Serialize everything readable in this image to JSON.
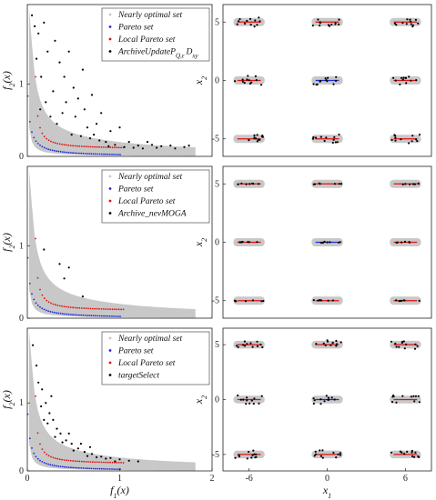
{
  "figure": {
    "rows": 3,
    "cols": 2
  },
  "colors": {
    "nearly_optimal": "#c8c8c8",
    "pareto": "#1f2ad6",
    "local_pareto": "#e01010",
    "archive": "#000000"
  },
  "chart_data": [
    {
      "type": "scatter",
      "panel": "objective-space-row1",
      "xlabel": "",
      "ylabel_main": "f",
      "ylabel_sub": "2",
      "ylabel_tail": "(x)",
      "xlim": [
        0,
        2
      ],
      "ylim": [
        0,
        2.1
      ],
      "xticks": [],
      "yticks": [
        "0",
        "1"
      ],
      "ytick_values": [
        0,
        1
      ],
      "legend": {
        "placement": "top-right",
        "entries": [
          {
            "label": "Nearly optimal set",
            "color": "#c8c8c8"
          },
          {
            "label": "Pareto set",
            "color": "#1f2ad6"
          },
          {
            "label": "Local Pareto set",
            "color": "#e01010"
          },
          {
            "label": "ArchiveUpdateP",
            "sub": "Q,ε",
            "tail": "D",
            "tail_sub": "xy",
            "color": "#000000"
          }
        ]
      },
      "series": [
        {
          "name": "Nearly optimal set",
          "note": "band"
        },
        {
          "name": "Pareto set",
          "note": "pareto front f2 ≈ 0.02/(f1+0.02)"
        },
        {
          "name": "Local Pareto set",
          "note": "local front f2 ≈ 0.1 + 0.02/(f1-0.07)"
        },
        {
          "name": "ArchiveUpdateP Q,ε D xy",
          "points": [
            [
              0.05,
              1.95
            ],
            [
              0.08,
              1.8
            ],
            [
              0.12,
              1.7
            ],
            [
              0.18,
              1.85
            ],
            [
              0.22,
              1.45
            ],
            [
              0.3,
              1.6
            ],
            [
              0.35,
              1.3
            ],
            [
              0.4,
              1.1
            ],
            [
              0.45,
              1.45
            ],
            [
              0.5,
              0.95
            ],
            [
              0.55,
              0.8
            ],
            [
              0.6,
              1.2
            ],
            [
              0.62,
              0.65
            ],
            [
              0.7,
              0.85
            ],
            [
              0.75,
              0.45
            ],
            [
              0.8,
              0.6
            ],
            [
              0.9,
              0.35
            ],
            [
              1.0,
              0.4
            ],
            [
              1.1,
              0.2
            ],
            [
              1.2,
              0.15
            ],
            [
              1.3,
              0.2
            ],
            [
              1.4,
              0.12
            ],
            [
              1.55,
              0.15
            ],
            [
              1.7,
              0.13
            ],
            [
              0.25,
              0.55
            ],
            [
              0.28,
              0.9
            ],
            [
              0.2,
              0.75
            ],
            [
              0.15,
              1.1
            ],
            [
              0.32,
              0.45
            ],
            [
              0.48,
              0.3
            ],
            [
              0.58,
              0.28
            ],
            [
              0.68,
              0.25
            ],
            [
              0.85,
              0.2
            ],
            [
              0.95,
              0.16
            ],
            [
              1.05,
              0.13
            ],
            [
              1.25,
              0.11
            ],
            [
              1.45,
              0.14
            ],
            [
              0.38,
              0.6
            ],
            [
              0.42,
              0.75
            ],
            [
              0.52,
              0.55
            ],
            [
              0.72,
              0.3
            ],
            [
              0.1,
              1.35
            ],
            [
              0.14,
              0.65
            ],
            [
              0.65,
              0.4
            ],
            [
              0.78,
              0.22
            ],
            [
              0.88,
              0.14
            ],
            [
              1.15,
              0.12
            ],
            [
              1.35,
              0.16
            ],
            [
              1.6,
              0.11
            ],
            [
              1.75,
              0.15
            ]
          ]
        }
      ]
    },
    {
      "type": "scatter",
      "panel": "decision-space-row1",
      "xlabel": "",
      "ylabel_main": "x",
      "ylabel_sub": "2",
      "ylabel_tail": "",
      "xlim": [
        -8,
        8
      ],
      "ylim": [
        -6.5,
        6.5
      ],
      "xticks": [],
      "yticks": [
        "-5",
        "0",
        "5"
      ],
      "ytick_values": [
        -5,
        0,
        5
      ],
      "series": [
        {
          "name": "ArchiveUpdateP Q,ε D xy",
          "note": "clusters at (±6,0,±5) grid"
        }
      ]
    },
    {
      "type": "scatter",
      "panel": "objective-space-row2",
      "xlabel": "",
      "ylabel_main": "f",
      "ylabel_sub": "2",
      "ylabel_tail": "(x)",
      "xlim": [
        0,
        2
      ],
      "ylim": [
        0,
        2.1
      ],
      "xticks": [],
      "yticks": [
        "0",
        "1"
      ],
      "ytick_values": [
        0,
        1
      ],
      "legend": {
        "placement": "top-right",
        "entries": [
          {
            "label": "Nearly optimal set",
            "color": "#c8c8c8"
          },
          {
            "label": "Pareto set",
            "color": "#1f2ad6"
          },
          {
            "label": "Local Pareto set",
            "color": "#e01010"
          },
          {
            "label": "Archive_nevMOGA",
            "color": "#000000"
          }
        ]
      },
      "series": [
        {
          "name": "Nearly optimal set"
        },
        {
          "name": "Pareto set"
        },
        {
          "name": "Local Pareto set"
        },
        {
          "name": "Archive_nevMOGA",
          "points": [
            [
              0.18,
              0.95
            ],
            [
              0.35,
              0.75
            ],
            [
              0.4,
              0.55
            ],
            [
              0.45,
              0.7
            ],
            [
              0.6,
              0.3
            ]
          ]
        }
      ]
    },
    {
      "type": "scatter",
      "panel": "decision-space-row2",
      "xlabel": "",
      "ylabel_main": "x",
      "ylabel_sub": "2",
      "ylabel_tail": "",
      "xlim": [
        -8,
        8
      ],
      "ylim": [
        -6.5,
        6.5
      ],
      "xticks": [],
      "yticks": [
        "-5",
        "0",
        "5"
      ],
      "ytick_values": [
        -5,
        0,
        5
      ],
      "series": [
        {
          "name": "Archive_nevMOGA"
        }
      ]
    },
    {
      "type": "scatter",
      "panel": "objective-space-row3",
      "xlabel_main": "f",
      "xlabel_sub": "1",
      "xlabel_tail": "(x)",
      "ylabel_main": "f",
      "ylabel_sub": "2",
      "ylabel_tail": "(x)",
      "xlim": [
        0,
        2
      ],
      "ylim": [
        0,
        2.1
      ],
      "xticks": [
        "0",
        "1",
        "2"
      ],
      "xtick_values": [
        0,
        1,
        2
      ],
      "yticks": [
        "0",
        "1"
      ],
      "ytick_values": [
        0,
        1
      ],
      "legend": {
        "placement": "top-right",
        "entries": [
          {
            "label": "Nearly optimal set",
            "color": "#c8c8c8"
          },
          {
            "label": "Pareto set",
            "color": "#1f2ad6"
          },
          {
            "label": "Local Pareto set",
            "color": "#e01010"
          },
          {
            "label": "targetSelect",
            "color": "#000000"
          }
        ]
      },
      "series": [
        {
          "name": "Nearly optimal set"
        },
        {
          "name": "Pareto set"
        },
        {
          "name": "Local Pareto set"
        },
        {
          "name": "targetSelect",
          "points": [
            [
              0.06,
              1.85
            ],
            [
              0.1,
              1.55
            ],
            [
              0.12,
              1.3
            ],
            [
              0.16,
              1.2
            ],
            [
              0.2,
              1.0
            ],
            [
              0.24,
              0.85
            ],
            [
              0.28,
              0.75
            ],
            [
              0.32,
              0.62
            ],
            [
              0.36,
              0.55
            ],
            [
              0.42,
              0.45
            ],
            [
              0.48,
              0.4
            ],
            [
              0.55,
              0.33
            ],
            [
              0.62,
              0.28
            ],
            [
              0.7,
              0.25
            ],
            [
              0.8,
              0.21
            ],
            [
              0.9,
              0.19
            ],
            [
              1.0,
              0.17
            ],
            [
              1.1,
              0.15
            ],
            [
              1.2,
              0.14
            ],
            [
              0.15,
              0.95
            ],
            [
              0.22,
              0.7
            ],
            [
              0.3,
              0.5
            ],
            [
              0.38,
              0.42
            ],
            [
              0.5,
              0.3
            ],
            [
              0.65,
              0.22
            ],
            [
              0.75,
              0.2
            ],
            [
              0.85,
              0.18
            ],
            [
              0.95,
              0.14
            ],
            [
              0.26,
              1.1
            ],
            [
              0.18,
              0.75
            ],
            [
              0.45,
              0.55
            ],
            [
              0.58,
              0.4
            ],
            [
              0.68,
              0.35
            ]
          ]
        }
      ]
    },
    {
      "type": "scatter",
      "panel": "decision-space-row3",
      "xlabel_main": "x",
      "xlabel_sub": "1",
      "xlabel_tail": "",
      "ylabel_main": "x",
      "ylabel_sub": "2",
      "ylabel_tail": "",
      "xlim": [
        -8,
        8
      ],
      "ylim": [
        -6.5,
        6.5
      ],
      "xticks": [
        "-6",
        "0",
        "6"
      ],
      "xtick_values": [
        -6,
        0,
        6
      ],
      "yticks": [
        "-5",
        "0",
        "5"
      ],
      "ytick_values": [
        -5,
        0,
        5
      ],
      "series": [
        {
          "name": "targetSelect"
        }
      ]
    }
  ]
}
